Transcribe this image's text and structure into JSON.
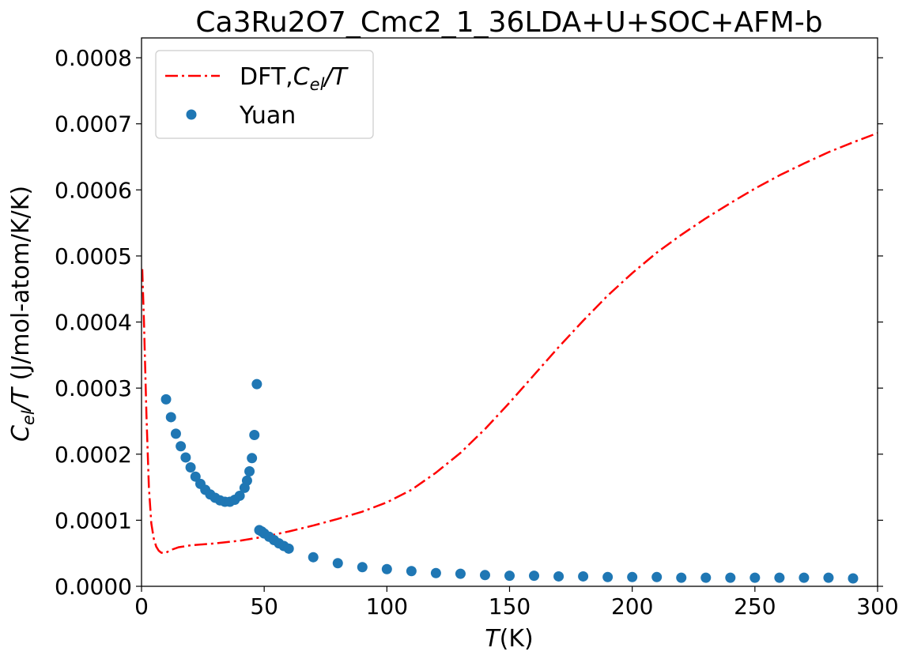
{
  "chart_data": {
    "type": "line",
    "title": "Ca3Ru2O7_Cmc2_1_36LDA+U+SOC+AFM-b",
    "xlabel": {
      "main": "T",
      "paren": "(K)"
    },
    "ylabel": {
      "c": "C",
      "sub": "el",
      "rest": "/T",
      "units": " (J/mol-atom/K/K)"
    },
    "xlim": [
      0,
      300
    ],
    "ylim": [
      0,
      0.00083
    ],
    "xticks": [
      0,
      50,
      100,
      150,
      200,
      250,
      300
    ],
    "yticks": [
      0.0,
      0.0001,
      0.0002,
      0.0003,
      0.0004,
      0.0005,
      0.0006,
      0.0007,
      0.0008
    ],
    "ytick_labels": [
      "0.0000",
      "0.0001",
      "0.0002",
      "0.0003",
      "0.0004",
      "0.0005",
      "0.0006",
      "0.0007",
      "0.0008"
    ],
    "grid": false,
    "legend_position": "top-left",
    "series": [
      {
        "name": "DFT,C_el/T",
        "legend_label": {
          "prefix": "DFT,",
          "c": "C",
          "sub": "el",
          "rest": "/T"
        },
        "style": "dash-dot line",
        "color": "#ff0000",
        "x": [
          0.3,
          1,
          2,
          3,
          4,
          5,
          6,
          7,
          8,
          9,
          10,
          12,
          15,
          20,
          30,
          40,
          50,
          60,
          70,
          80,
          90,
          100,
          110,
          120,
          130,
          140,
          150,
          160,
          170,
          180,
          190,
          200,
          210,
          220,
          230,
          240,
          250,
          260,
          270,
          280,
          290,
          300
        ],
        "y": [
          0.00048,
          0.0004,
          0.00026,
          0.00015,
          9.5e-05,
          7.2e-05,
          6e-05,
          5.4e-05,
          5.1e-05,
          5e-05,
          5.1e-05,
          5.5e-05,
          5.9e-05,
          6.2e-05,
          6.5e-05,
          6.9e-05,
          7.5e-05,
          8.3e-05,
          9.2e-05,
          0.000102,
          0.000113,
          0.000127,
          0.000146,
          0.000172,
          0.000202,
          0.000238,
          0.000278,
          0.00032,
          0.000362,
          0.000402,
          0.00044,
          0.000474,
          0.000505,
          0.000532,
          0.000557,
          0.00058,
          0.000602,
          0.000622,
          0.00064,
          0.000657,
          0.000672,
          0.000686
        ]
      },
      {
        "name": "Yuan",
        "style": "scatter",
        "color": "#1f77b4",
        "x": [
          10,
          12,
          14,
          16,
          18,
          20,
          22,
          24,
          26,
          28,
          30,
          32,
          34,
          36,
          38,
          40,
          42,
          43,
          44,
          45,
          46,
          47,
          48,
          49,
          50,
          52,
          54,
          56,
          58,
          60,
          70,
          80,
          90,
          100,
          110,
          120,
          130,
          140,
          150,
          160,
          170,
          180,
          190,
          200,
          210,
          220,
          230,
          240,
          250,
          260,
          270,
          280,
          290
        ],
        "y": [
          0.000283,
          0.000256,
          0.000231,
          0.000212,
          0.000195,
          0.00018,
          0.000166,
          0.000155,
          0.000146,
          0.000139,
          0.000134,
          0.00013,
          0.000128,
          0.000128,
          0.000131,
          0.000137,
          0.000149,
          0.00016,
          0.000174,
          0.000194,
          0.000229,
          0.000306,
          8.5e-05,
          8.3e-05,
          8e-05,
          7.5e-05,
          7e-05,
          6.5e-05,
          6.1e-05,
          5.7e-05,
          4.4e-05,
          3.5e-05,
          2.9e-05,
          2.6e-05,
          2.3e-05,
          2e-05,
          1.9e-05,
          1.7e-05,
          1.6e-05,
          1.6e-05,
          1.5e-05,
          1.5e-05,
          1.4e-05,
          1.4e-05,
          1.4e-05,
          1.3e-05,
          1.3e-05,
          1.3e-05,
          1.3e-05,
          1.3e-05,
          1.3e-05,
          1.3e-05,
          1.2e-05
        ]
      }
    ]
  }
}
